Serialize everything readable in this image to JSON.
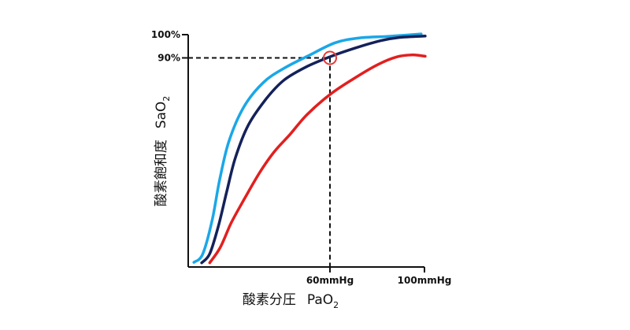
{
  "chart_data": {
    "type": "line",
    "xlabel_main": "酸素分圧",
    "xlabel_var": "PaO",
    "xlabel_sub": "2",
    "ylabel_main": "酸素飽和度",
    "ylabel_var": "SaO",
    "ylabel_sub": "2",
    "x_tick_labels": [
      "60mmHg",
      "100mmHg"
    ],
    "x_ticks": [
      60,
      100
    ],
    "y_tick_labels": [
      "100%",
      "90%"
    ],
    "y_ticks": [
      100,
      90
    ],
    "xlim": [
      0,
      100
    ],
    "ylim": [
      0,
      100
    ],
    "grid": false,
    "reference": {
      "x": 60,
      "y": 90
    },
    "colors": {
      "axis": "#111111",
      "reference_line": "#111111",
      "marker": "#e53935",
      "left_shift": "#1aa7e8",
      "normal": "#14215a",
      "right_shift": "#e21f1f"
    },
    "series": [
      {
        "key": "left_shift",
        "points": [
          [
            2.4,
            2
          ],
          [
            6.1,
            5.5
          ],
          [
            10.1,
            20
          ],
          [
            13.2,
            37
          ],
          [
            17.2,
            54
          ],
          [
            23.6,
            69
          ],
          [
            31.8,
            79.4
          ],
          [
            40.5,
            85.5
          ],
          [
            51,
            91
          ],
          [
            62.2,
            96.5
          ],
          [
            72.6,
            98.6
          ],
          [
            85.1,
            99.3
          ],
          [
            98.6,
            100.3
          ]
        ]
      },
      {
        "key": "normal",
        "points": [
          [
            5.7,
            1.8
          ],
          [
            9.1,
            5.7
          ],
          [
            12.8,
            17.7
          ],
          [
            16.2,
            32
          ],
          [
            19.9,
            46.8
          ],
          [
            25.4,
            61
          ],
          [
            33.1,
            72.5
          ],
          [
            40.5,
            80.4
          ],
          [
            49.7,
            86
          ],
          [
            60.1,
            90.5
          ],
          [
            70.6,
            94.2
          ],
          [
            81.4,
            97.4
          ],
          [
            89.5,
            98.8
          ],
          [
            100.3,
            99.4
          ]
        ]
      },
      {
        "key": "right_shift",
        "points": [
          [
            9.1,
            1.8
          ],
          [
            13.5,
            8.3
          ],
          [
            18.2,
            19
          ],
          [
            23.6,
            29
          ],
          [
            30.1,
            40.4
          ],
          [
            36.5,
            49.7
          ],
          [
            43.2,
            57.2
          ],
          [
            50.3,
            65.6
          ],
          [
            60.1,
            74.3
          ],
          [
            70.6,
            81.4
          ],
          [
            80.4,
            87.2
          ],
          [
            88.2,
            90.4
          ],
          [
            94.6,
            91.3
          ],
          [
            100.3,
            90.7
          ]
        ]
      }
    ]
  }
}
